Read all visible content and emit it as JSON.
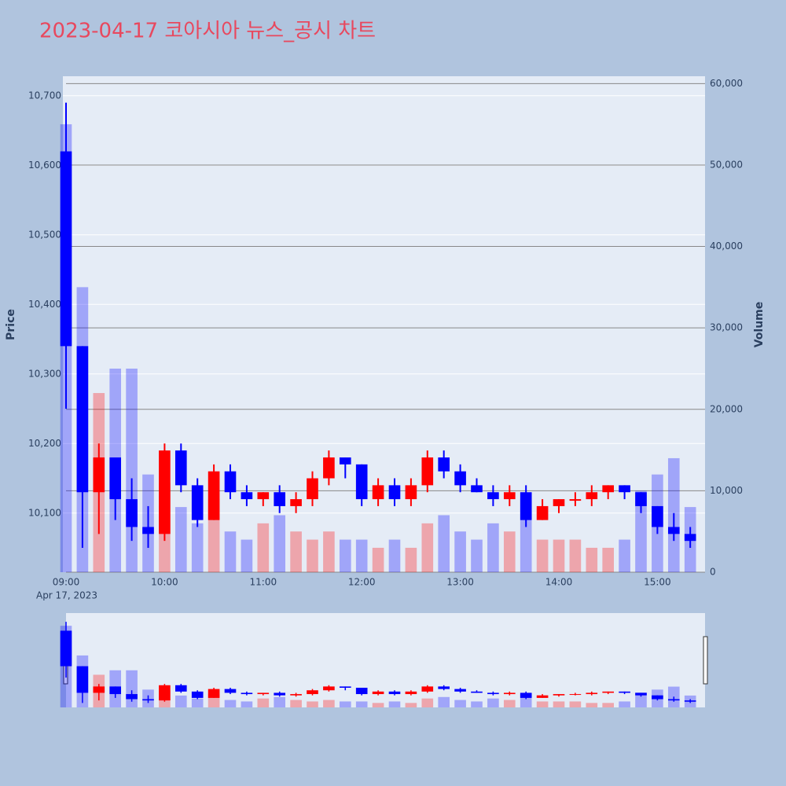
{
  "chart_data": {
    "type": "candlestick",
    "title": "2023-04-17 코아시아 뉴스_공시 차트",
    "y_label": "Price",
    "y2_label": "Volume",
    "x_date_label": "Apr 17, 2023",
    "increasing_color": "#ff0000",
    "decreasing_color": "#0000ff",
    "x": [
      "2023-04-17 09:00",
      "2023-04-17 09:10",
      "2023-04-17 09:20",
      "2023-04-17 09:30",
      "2023-04-17 09:40",
      "2023-04-17 09:50",
      "2023-04-17 10:00",
      "2023-04-17 10:10",
      "2023-04-17 10:20",
      "2023-04-17 10:30",
      "2023-04-17 10:40",
      "2023-04-17 10:50",
      "2023-04-17 11:00",
      "2023-04-17 11:10",
      "2023-04-17 11:20",
      "2023-04-17 11:30",
      "2023-04-17 11:40",
      "2023-04-17 11:50",
      "2023-04-17 12:00",
      "2023-04-17 12:10",
      "2023-04-17 12:20",
      "2023-04-17 12:30",
      "2023-04-17 12:40",
      "2023-04-17 12:50",
      "2023-04-17 13:00",
      "2023-04-17 13:10",
      "2023-04-17 13:20",
      "2023-04-17 13:30",
      "2023-04-17 13:40",
      "2023-04-17 13:50",
      "2023-04-17 14:00",
      "2023-04-17 14:10",
      "2023-04-17 14:20",
      "2023-04-17 14:30",
      "2023-04-17 14:40",
      "2023-04-17 14:50",
      "2023-04-17 15:00",
      "2023-04-17 15:10",
      "2023-04-17 15:20"
    ],
    "open": [
      10620,
      10340,
      10130,
      10180,
      10120,
      10080,
      10070,
      10190,
      10140,
      10090,
      10160,
      10130,
      10120,
      10130,
      10110,
      10120,
      10150,
      10180,
      10170,
      10120,
      10140,
      10120,
      10140,
      10180,
      10160,
      10140,
      10130,
      10120,
      10130,
      10090,
      10110,
      10120,
      10120,
      10130,
      10140,
      10130,
      10110,
      10080,
      10070
    ],
    "high": [
      10690,
      10340,
      10200,
      10180,
      10150,
      10110,
      10200,
      10200,
      10150,
      10170,
      10170,
      10140,
      10130,
      10140,
      10130,
      10160,
      10190,
      10180,
      10170,
      10150,
      10150,
      10150,
      10190,
      10190,
      10170,
      10150,
      10140,
      10140,
      10140,
      10120,
      10120,
      10130,
      10140,
      10140,
      10140,
      10130,
      10110,
      10100,
      10080
    ],
    "low": [
      10250,
      10050,
      10070,
      10090,
      10060,
      10050,
      10060,
      10130,
      10080,
      10090,
      10120,
      10110,
      10110,
      10100,
      10100,
      10110,
      10140,
      10150,
      10110,
      10110,
      10110,
      10110,
      10130,
      10150,
      10130,
      10130,
      10110,
      10110,
      10080,
      10090,
      10100,
      10110,
      10110,
      10120,
      10120,
      10100,
      10070,
      10060,
      10050
    ],
    "close": [
      10340,
      10130,
      10180,
      10120,
      10080,
      10070,
      10190,
      10140,
      10090,
      10160,
      10130,
      10120,
      10130,
      10110,
      10120,
      10150,
      10180,
      10170,
      10120,
      10140,
      10120,
      10140,
      10180,
      10160,
      10140,
      10130,
      10120,
      10130,
      10090,
      10110,
      10120,
      10120,
      10130,
      10140,
      10130,
      10110,
      10080,
      10070,
      10060
    ],
    "volume": [
      55000,
      35000,
      22000,
      25000,
      25000,
      12000,
      11000,
      8000,
      6000,
      9000,
      5000,
      4000,
      6000,
      7000,
      5000,
      4000,
      5000,
      4000,
      4000,
      3000,
      4000,
      3000,
      6000,
      7000,
      5000,
      4000,
      6000,
      5000,
      9000,
      4000,
      4000,
      4000,
      3000,
      3000,
      4000,
      10000,
      12000,
      14000,
      8000
    ],
    "xlim": [
      "2023-04-17 09:00",
      "2023-04-17 15:29"
    ],
    "xticks": [
      {
        "value": "2023-04-17 09:00",
        "label": "09:00"
      },
      {
        "value": "2023-04-17 10:00",
        "label": "10:00"
      },
      {
        "value": "2023-04-17 11:00",
        "label": "11:00"
      },
      {
        "value": "2023-04-17 12:00",
        "label": "12:00"
      },
      {
        "value": "2023-04-17 13:00",
        "label": "13:00"
      },
      {
        "value": "2023-04-17 14:00",
        "label": "14:00"
      },
      {
        "value": "2023-04-17 15:00",
        "label": "15:00"
      }
    ],
    "ylim": [
      10015,
      10728
    ],
    "yticks": [
      {
        "value": 10100,
        "label": "10,100"
      },
      {
        "value": 10200,
        "label": "10,200"
      },
      {
        "value": 10300,
        "label": "10,300"
      },
      {
        "value": 10400,
        "label": "10,400"
      },
      {
        "value": 10500,
        "label": "10,500"
      },
      {
        "value": 10600,
        "label": "10,600"
      },
      {
        "value": 10700,
        "label": "10,700"
      }
    ],
    "y2lim": [
      0,
      60900
    ],
    "y2ticks": [
      0,
      {
        "value": 10000,
        "label": "10,000"
      },
      {
        "value": 20000,
        "label": "20,000"
      },
      {
        "value": 30000,
        "label": "30,000"
      },
      {
        "value": 40000,
        "label": "40,000"
      },
      {
        "value": 50000,
        "label": "50,000"
      },
      {
        "value": 60000,
        "label": "60,000"
      }
    ],
    "grid": true,
    "rangeslider": true
  }
}
